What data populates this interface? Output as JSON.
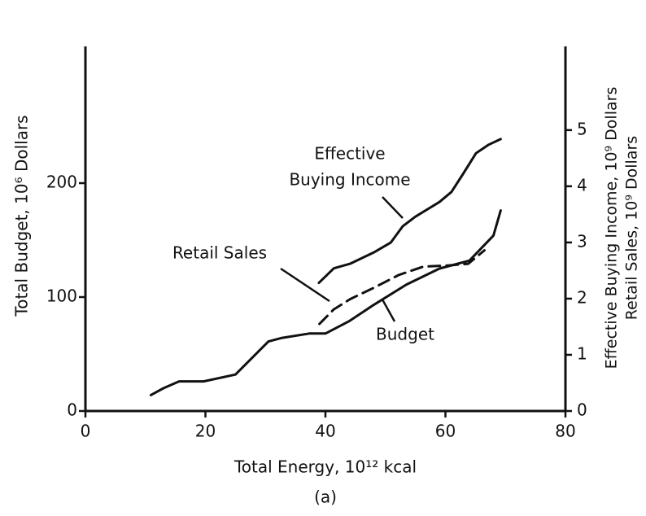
{
  "chart_data": {
    "type": "line",
    "xlabel": "Total Energy, 10¹² kcal",
    "ylabel": "Total Budget, 10⁶ Dollars",
    "y2label": [
      "Effective Buying Income, 10⁹ Dollars",
      "Retail Sales, 10⁹ Dollars"
    ],
    "caption": "(a)",
    "xlim": [
      0,
      80
    ],
    "xticks": [
      0,
      20,
      40,
      60,
      80
    ],
    "ylim": [
      0,
      320
    ],
    "yticks": [
      0,
      100,
      200
    ],
    "y2lim": [
      0,
      6.49
    ],
    "y2ticks": [
      0,
      1,
      2,
      3,
      4,
      5
    ],
    "series": [
      {
        "name": [
          "Effective",
          "Buying Income"
        ],
        "color": "#111111",
        "axis": "y2",
        "dashed": false,
        "x": [
          38.9,
          41.4,
          44.1,
          48.2,
          50.9,
          52.9,
          55,
          59,
          61,
          63,
          65.1,
          67.2,
          69.2
        ],
        "values": [
          2.28,
          2.54,
          2.62,
          2.83,
          3.0,
          3.29,
          3.46,
          3.72,
          3.9,
          4.23,
          4.59,
          4.74,
          4.84
        ]
      },
      {
        "name": "Retail Sales",
        "color": "#111111",
        "axis": "y2",
        "dashed": true,
        "x": [
          39,
          41.4,
          44.1,
          48.2,
          52.2,
          56.3,
          60.4,
          63.8,
          66.5
        ],
        "values": [
          1.55,
          1.81,
          1.99,
          2.2,
          2.42,
          2.57,
          2.59,
          2.62,
          2.86
        ]
      },
      {
        "name": "Budget",
        "color": "#111111",
        "axis": "y",
        "dashed": false,
        "x": [
          10.9,
          13,
          15.6,
          19.7,
          25,
          30.5,
          32.6,
          37.3,
          40,
          44,
          48,
          53.5,
          59,
          64,
          68,
          69.2
        ],
        "values": [
          14,
          20,
          26,
          26,
          32,
          61,
          64,
          68,
          68,
          79,
          93,
          111,
          125,
          132,
          154,
          176
        ]
      }
    ]
  }
}
